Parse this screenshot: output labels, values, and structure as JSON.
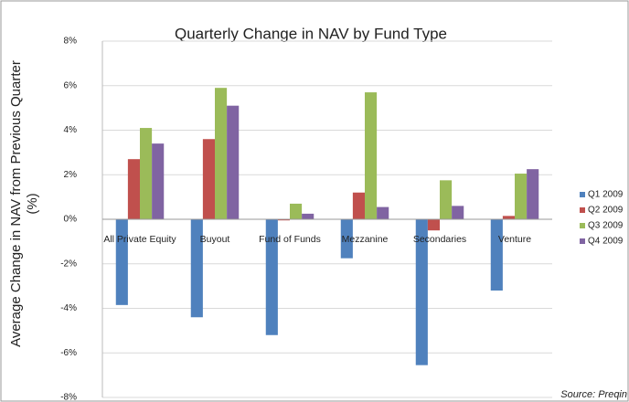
{
  "chart_data": {
    "type": "bar",
    "title": "Quarterly Change in NAV by Fund Type",
    "ylabel": "Average Change in NAV from Previous Quarter (%)",
    "source": "Source: Preqin",
    "categories": [
      "All Private Equity",
      "Buyout",
      "Fund of Funds",
      "Mezzanine",
      "Secondaries",
      "Venture"
    ],
    "series": [
      {
        "name": "Q1 2009",
        "color": "#4f81bd",
        "values": [
          -3.85,
          -4.4,
          -5.2,
          -1.75,
          -6.55,
          -3.2
        ]
      },
      {
        "name": "Q2 2009",
        "color": "#c0504d",
        "values": [
          2.7,
          3.6,
          -0.05,
          1.2,
          -0.5,
          0.15
        ]
      },
      {
        "name": "Q3 2009",
        "color": "#9bbb59",
        "values": [
          4.1,
          5.9,
          0.7,
          5.7,
          1.75,
          2.05
        ]
      },
      {
        "name": "Q4 2009",
        "color": "#8064a2",
        "values": [
          3.4,
          5.1,
          0.25,
          0.55,
          0.6,
          2.25
        ]
      }
    ],
    "ylim": [
      -8,
      8
    ],
    "yticks": [
      {
        "value": -8,
        "label": "-8%"
      },
      {
        "value": -6,
        "label": "-6%"
      },
      {
        "value": -4,
        "label": "-4%"
      },
      {
        "value": -2,
        "label": "-2%"
      },
      {
        "value": 0,
        "label": "0%"
      },
      {
        "value": 2,
        "label": "2%"
      },
      {
        "value": 4,
        "label": "4%"
      },
      {
        "value": 6,
        "label": "6%"
      },
      {
        "value": 8,
        "label": "8%"
      }
    ],
    "grid": true,
    "legend": "right"
  }
}
